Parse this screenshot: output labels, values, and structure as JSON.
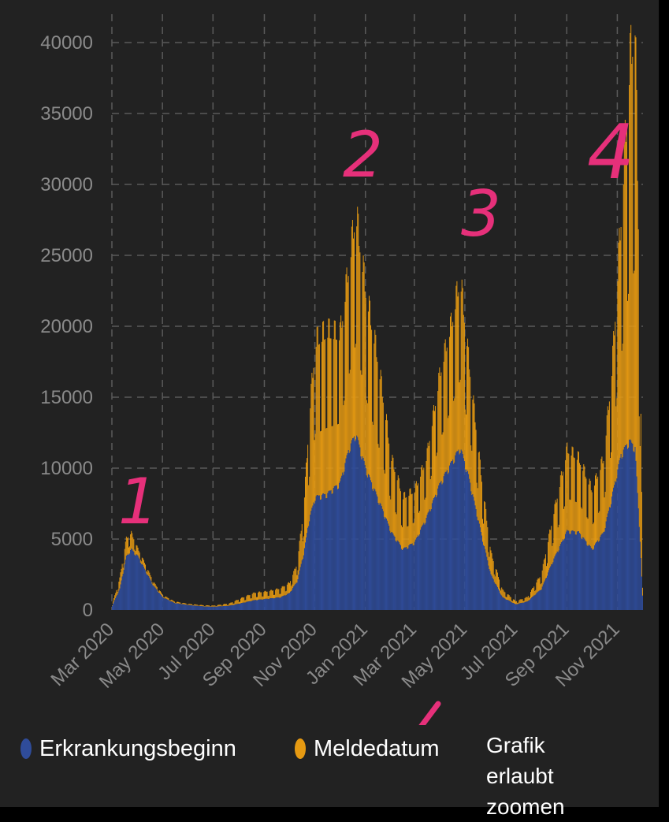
{
  "chart_data": {
    "type": "bar",
    "stacked": true,
    "ylim": [
      0,
      42000
    ],
    "yticks": [
      0,
      5000,
      10000,
      15000,
      20000,
      25000,
      30000,
      35000,
      40000
    ],
    "x_range": [
      "2020-03-01",
      "2021-12-01"
    ],
    "xticks": [
      "Mar 2020",
      "May 2020",
      "Jul 2020",
      "Sep 2020",
      "Nov 2020",
      "Jan 2021",
      "Mar 2021",
      "May 2021",
      "Jul 2021",
      "Sep 2021",
      "Nov 2021"
    ],
    "grid": true,
    "legend_position": "bottom",
    "series": [
      {
        "name": "Erkrankungsbeginn",
        "color": "#2f4c9a",
        "points": [
          [
            "2020-03-01",
            300
          ],
          [
            "2020-03-10",
            1500
          ],
          [
            "2020-03-18",
            3800
          ],
          [
            "2020-03-24",
            4300
          ],
          [
            "2020-04-01",
            3800
          ],
          [
            "2020-04-10",
            2800
          ],
          [
            "2020-04-20",
            1700
          ],
          [
            "2020-05-01",
            900
          ],
          [
            "2020-05-15",
            500
          ],
          [
            "2020-06-01",
            350
          ],
          [
            "2020-06-20",
            250
          ],
          [
            "2020-07-01",
            230
          ],
          [
            "2020-07-20",
            300
          ],
          [
            "2020-08-05",
            500
          ],
          [
            "2020-08-20",
            700
          ],
          [
            "2020-09-05",
            800
          ],
          [
            "2020-09-20",
            900
          ],
          [
            "2020-10-01",
            1200
          ],
          [
            "2020-10-10",
            2000
          ],
          [
            "2020-10-18",
            4000
          ],
          [
            "2020-10-25",
            6500
          ],
          [
            "2020-11-01",
            8000
          ],
          [
            "2020-11-15",
            8200
          ],
          [
            "2020-12-01",
            9000
          ],
          [
            "2020-12-12",
            11500
          ],
          [
            "2020-12-20",
            12500
          ],
          [
            "2021-01-01",
            10000
          ],
          [
            "2021-01-15",
            8000
          ],
          [
            "2021-02-01",
            5500
          ],
          [
            "2021-02-15",
            4300
          ],
          [
            "2021-03-01",
            4800
          ],
          [
            "2021-03-15",
            6500
          ],
          [
            "2021-04-01",
            9000
          ],
          [
            "2021-04-15",
            10500
          ],
          [
            "2021-04-25",
            11500
          ],
          [
            "2021-05-05",
            9500
          ],
          [
            "2021-05-20",
            5500
          ],
          [
            "2021-06-01",
            2500
          ],
          [
            "2021-06-15",
            900
          ],
          [
            "2021-07-01",
            400
          ],
          [
            "2021-07-15",
            600
          ],
          [
            "2021-08-01",
            1500
          ],
          [
            "2021-08-15",
            3500
          ],
          [
            "2021-09-01",
            5600
          ],
          [
            "2021-09-15",
            5500
          ],
          [
            "2021-10-01",
            4300
          ],
          [
            "2021-10-15",
            5500
          ],
          [
            "2021-10-25",
            8000
          ],
          [
            "2021-11-05",
            11000
          ],
          [
            "2021-11-15",
            12000
          ],
          [
            "2021-11-22",
            11500
          ],
          [
            "2021-11-28",
            5000
          ],
          [
            "2021-12-01",
            1000
          ]
        ]
      },
      {
        "name": "Meldedatum",
        "color": "#e69a12",
        "points": [
          [
            "2020-03-01",
            100
          ],
          [
            "2020-03-10",
            700
          ],
          [
            "2020-03-18",
            1200
          ],
          [
            "2020-03-24",
            1100
          ],
          [
            "2020-04-01",
            500
          ],
          [
            "2020-04-10",
            400
          ],
          [
            "2020-04-20",
            250
          ],
          [
            "2020-05-01",
            150
          ],
          [
            "2020-05-15",
            100
          ],
          [
            "2020-06-01",
            80
          ],
          [
            "2020-06-20",
            80
          ],
          [
            "2020-07-01",
            80
          ],
          [
            "2020-07-20",
            150
          ],
          [
            "2020-08-05",
            350
          ],
          [
            "2020-08-20",
            500
          ],
          [
            "2020-09-05",
            500
          ],
          [
            "2020-09-20",
            600
          ],
          [
            "2020-10-01",
            700
          ],
          [
            "2020-10-10",
            1200
          ],
          [
            "2020-10-18",
            3000
          ],
          [
            "2020-10-25",
            7000
          ],
          [
            "2020-11-01",
            10500
          ],
          [
            "2020-11-15",
            11000
          ],
          [
            "2020-12-01",
            10000
          ],
          [
            "2020-12-12",
            12500
          ],
          [
            "2020-12-20",
            15000
          ],
          [
            "2021-01-01",
            12000
          ],
          [
            "2021-01-15",
            9500
          ],
          [
            "2021-02-01",
            5000
          ],
          [
            "2021-02-15",
            3500
          ],
          [
            "2021-03-01",
            3500
          ],
          [
            "2021-03-15",
            4000
          ],
          [
            "2021-04-01",
            7500
          ],
          [
            "2021-04-15",
            9500
          ],
          [
            "2021-04-25",
            11500
          ],
          [
            "2021-05-05",
            8000
          ],
          [
            "2021-05-20",
            4000
          ],
          [
            "2021-06-01",
            1500
          ],
          [
            "2021-06-15",
            500
          ],
          [
            "2021-07-01",
            200
          ],
          [
            "2021-07-15",
            300
          ],
          [
            "2021-08-01",
            1000
          ],
          [
            "2021-08-15",
            3000
          ],
          [
            "2021-09-01",
            5500
          ],
          [
            "2021-09-15",
            5000
          ],
          [
            "2021-10-01",
            4000
          ],
          [
            "2021-10-15",
            5000
          ],
          [
            "2021-10-25",
            8500
          ],
          [
            "2021-11-05",
            16000
          ],
          [
            "2021-11-15",
            25000
          ],
          [
            "2021-11-22",
            29000
          ],
          [
            "2021-11-28",
            15000
          ],
          [
            "2021-12-01",
            500
          ]
        ]
      }
    ],
    "annotations": [
      "1",
      "2",
      "3",
      "4"
    ]
  },
  "legend": {
    "erkrankung": "Erkrankungsbeginn",
    "melde": "Meldedatum",
    "erkrankung_color": "#2f4c9a",
    "melde_color": "#e69a12"
  },
  "note": "Grafik erlaubt zoomen"
}
